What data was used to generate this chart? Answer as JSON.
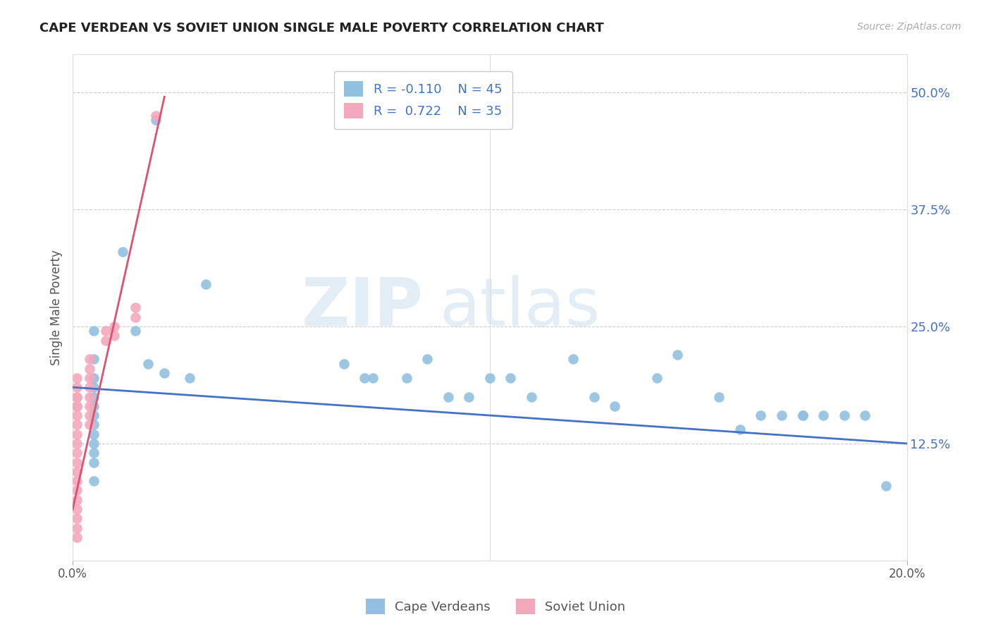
{
  "title": "CAPE VERDEAN VS SOVIET UNION SINGLE MALE POVERTY CORRELATION CHART",
  "source": "Source: ZipAtlas.com",
  "ylabel": "Single Male Poverty",
  "yticks": [
    0.0,
    0.125,
    0.25,
    0.375,
    0.5
  ],
  "ytick_labels": [
    "",
    "12.5%",
    "25.0%",
    "37.5%",
    "50.0%"
  ],
  "xmin": 0.0,
  "xmax": 0.2,
  "ymin": 0.0,
  "ymax": 0.54,
  "blue_R": -0.11,
  "blue_N": 45,
  "pink_R": 0.722,
  "pink_N": 35,
  "blue_color": "#92c0e0",
  "pink_color": "#f4a8bc",
  "blue_line_color": "#4472c4",
  "pink_line_color": "#e05070",
  "watermark_zip": "ZIP",
  "watermark_atlas": "atlas",
  "blue_scatter_x": [
    0.02,
    0.012,
    0.032,
    0.005,
    0.005,
    0.005,
    0.005,
    0.005,
    0.005,
    0.005,
    0.005,
    0.005,
    0.005,
    0.005,
    0.005,
    0.005,
    0.015,
    0.018,
    0.022,
    0.028,
    0.065,
    0.07,
    0.072,
    0.08,
    0.085,
    0.09,
    0.095,
    0.1,
    0.105,
    0.11,
    0.12,
    0.125,
    0.13,
    0.14,
    0.145,
    0.155,
    0.16,
    0.165,
    0.17,
    0.175,
    0.175,
    0.18,
    0.185,
    0.19,
    0.195
  ],
  "blue_scatter_y": [
    0.47,
    0.33,
    0.295,
    0.245,
    0.215,
    0.195,
    0.185,
    0.175,
    0.165,
    0.155,
    0.145,
    0.135,
    0.125,
    0.115,
    0.105,
    0.085,
    0.245,
    0.21,
    0.2,
    0.195,
    0.21,
    0.195,
    0.195,
    0.195,
    0.215,
    0.175,
    0.175,
    0.195,
    0.195,
    0.175,
    0.215,
    0.175,
    0.165,
    0.195,
    0.22,
    0.175,
    0.14,
    0.155,
    0.155,
    0.155,
    0.155,
    0.155,
    0.155,
    0.155,
    0.08
  ],
  "pink_scatter_x": [
    0.001,
    0.001,
    0.001,
    0.001,
    0.001,
    0.001,
    0.001,
    0.001,
    0.001,
    0.001,
    0.001,
    0.001,
    0.001,
    0.001,
    0.001,
    0.001,
    0.001,
    0.001,
    0.001,
    0.001,
    0.004,
    0.004,
    0.004,
    0.004,
    0.004,
    0.004,
    0.004,
    0.004,
    0.008,
    0.008,
    0.01,
    0.01,
    0.015,
    0.015,
    0.02
  ],
  "pink_scatter_y": [
    0.175,
    0.165,
    0.155,
    0.145,
    0.135,
    0.125,
    0.115,
    0.105,
    0.095,
    0.085,
    0.075,
    0.065,
    0.055,
    0.045,
    0.035,
    0.025,
    0.195,
    0.185,
    0.175,
    0.165,
    0.215,
    0.205,
    0.195,
    0.185,
    0.175,
    0.165,
    0.155,
    0.145,
    0.245,
    0.235,
    0.25,
    0.24,
    0.27,
    0.26,
    0.475
  ],
  "blue_line_x0": 0.0,
  "blue_line_x1": 0.2,
  "blue_line_y0": 0.185,
  "blue_line_y1": 0.125,
  "pink_line_x0": 0.0,
  "pink_line_x1": 0.022,
  "pink_line_y0": 0.055,
  "pink_line_y1": 0.495
}
